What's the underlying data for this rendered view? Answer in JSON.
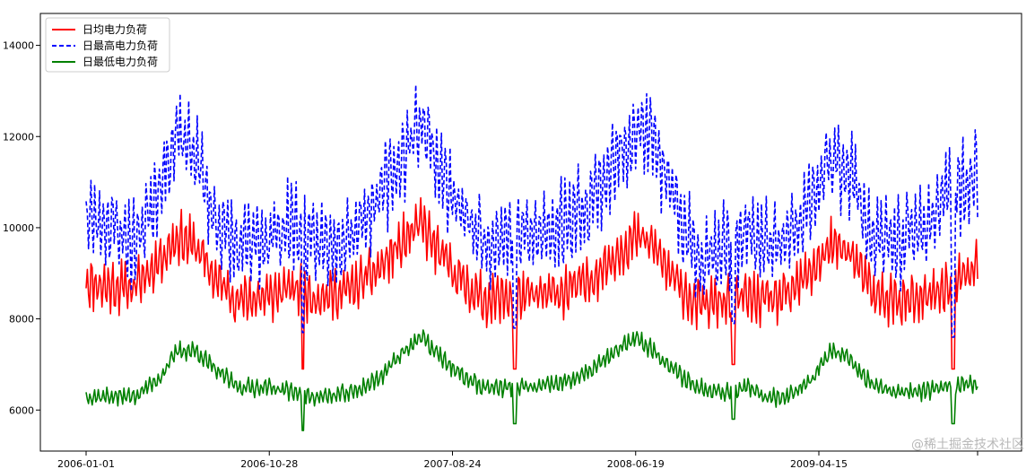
{
  "chart_data": {
    "type": "line",
    "title": "",
    "xlabel": "",
    "ylabel": "",
    "x_range_days": [
      0,
      1460
    ],
    "ylim": [
      5100,
      14700
    ],
    "x_ticks": [
      {
        "label": "2006-01-01",
        "day": 0
      },
      {
        "label": "2006-10-28",
        "day": 300
      },
      {
        "label": "2007-08-24",
        "day": 600
      },
      {
        "label": "2008-06-19",
        "day": 900
      },
      {
        "label": "2009-04-15",
        "day": 1200
      }
    ],
    "y_ticks": [
      6000,
      8000,
      10000,
      12000,
      14000
    ],
    "legend_position": "top-left",
    "series": [
      {
        "name": "日均电力负荷",
        "color": "#ff0000",
        "style": "solid",
        "base": [
          [
            0,
            8800
          ],
          [
            40,
            8700
          ],
          [
            80,
            8700
          ],
          [
            120,
            9300
          ],
          [
            150,
            9800
          ],
          [
            180,
            9600
          ],
          [
            210,
            8900
          ],
          [
            250,
            8400
          ],
          [
            300,
            8500
          ],
          [
            340,
            8700
          ],
          [
            370,
            8500
          ],
          [
            400,
            8500
          ],
          [
            440,
            8700
          ],
          [
            480,
            9100
          ],
          [
            520,
            9700
          ],
          [
            550,
            10100
          ],
          [
            570,
            9600
          ],
          [
            610,
            8900
          ],
          [
            650,
            8400
          ],
          [
            700,
            8500
          ],
          [
            740,
            8500
          ],
          [
            780,
            8600
          ],
          [
            820,
            8800
          ],
          [
            860,
            9300
          ],
          [
            900,
            9800
          ],
          [
            930,
            9600
          ],
          [
            960,
            8900
          ],
          [
            1000,
            8300
          ],
          [
            1050,
            8400
          ],
          [
            1080,
            8500
          ],
          [
            1110,
            8400
          ],
          [
            1150,
            8500
          ],
          [
            1190,
            9100
          ],
          [
            1220,
            9600
          ],
          [
            1250,
            9500
          ],
          [
            1290,
            8500
          ],
          [
            1330,
            8400
          ],
          [
            1370,
            8400
          ],
          [
            1410,
            8700
          ],
          [
            1445,
            9000
          ],
          [
            1460,
            9200
          ]
        ],
        "amp": 550,
        "seed": 11
      },
      {
        "name": "日最高电力负荷",
        "color": "#0000ff",
        "style": "dashed",
        "base": [
          [
            0,
            10200
          ],
          [
            40,
            10100
          ],
          [
            80,
            9600
          ],
          [
            120,
            11000
          ],
          [
            150,
            12000
          ],
          [
            180,
            11600
          ],
          [
            210,
            10200
          ],
          [
            250,
            9500
          ],
          [
            300,
            9800
          ],
          [
            340,
            10100
          ],
          [
            370,
            9600
          ],
          [
            400,
            9700
          ],
          [
            440,
            10000
          ],
          [
            480,
            10700
          ],
          [
            520,
            11600
          ],
          [
            550,
            12400
          ],
          [
            570,
            11600
          ],
          [
            610,
            10400
          ],
          [
            650,
            9700
          ],
          [
            700,
            9900
          ],
          [
            740,
            9800
          ],
          [
            780,
            10100
          ],
          [
            820,
            10500
          ],
          [
            860,
            11300
          ],
          [
            900,
            12200
          ],
          [
            930,
            11900
          ],
          [
            960,
            10600
          ],
          [
            1000,
            9400
          ],
          [
            1050,
            9600
          ],
          [
            1080,
            9900
          ],
          [
            1110,
            9600
          ],
          [
            1150,
            9700
          ],
          [
            1190,
            10600
          ],
          [
            1220,
            11500
          ],
          [
            1250,
            11300
          ],
          [
            1290,
            9700
          ],
          [
            1330,
            9700
          ],
          [
            1370,
            10000
          ],
          [
            1410,
            10700
          ],
          [
            1445,
            11000
          ],
          [
            1460,
            11200
          ]
        ],
        "amp": 950,
        "seed": 23
      },
      {
        "name": "日最低电力负荷",
        "color": "#008000",
        "style": "solid",
        "base": [
          [
            0,
            6300
          ],
          [
            40,
            6300
          ],
          [
            80,
            6300
          ],
          [
            120,
            6700
          ],
          [
            150,
            7300
          ],
          [
            180,
            7300
          ],
          [
            210,
            6900
          ],
          [
            250,
            6500
          ],
          [
            300,
            6500
          ],
          [
            340,
            6400
          ],
          [
            370,
            6300
          ],
          [
            400,
            6300
          ],
          [
            440,
            6400
          ],
          [
            480,
            6700
          ],
          [
            520,
            7300
          ],
          [
            550,
            7600
          ],
          [
            570,
            7300
          ],
          [
            610,
            6800
          ],
          [
            650,
            6500
          ],
          [
            700,
            6500
          ],
          [
            740,
            6500
          ],
          [
            780,
            6600
          ],
          [
            820,
            6800
          ],
          [
            860,
            7200
          ],
          [
            900,
            7600
          ],
          [
            930,
            7300
          ],
          [
            960,
            6900
          ],
          [
            1000,
            6500
          ],
          [
            1050,
            6400
          ],
          [
            1080,
            6500
          ],
          [
            1110,
            6300
          ],
          [
            1150,
            6300
          ],
          [
            1190,
            6700
          ],
          [
            1220,
            7300
          ],
          [
            1250,
            7100
          ],
          [
            1290,
            6500
          ],
          [
            1330,
            6400
          ],
          [
            1370,
            6400
          ],
          [
            1410,
            6500
          ],
          [
            1445,
            6600
          ],
          [
            1460,
            6600
          ]
        ],
        "amp": 200,
        "seed": 37
      }
    ],
    "spikes": [
      {
        "day": 355,
        "low": 5550,
        "mid": 6900,
        "high": 7700
      },
      {
        "day": 702,
        "low": 5700,
        "mid": 6900,
        "high": 7800
      },
      {
        "day": 1060,
        "low": 5800,
        "mid": 7000,
        "high": 7900
      },
      {
        "day": 1420,
        "low": 5700,
        "mid": 6900,
        "high": 7600
      }
    ]
  },
  "legend": {
    "items": [
      {
        "label": "日均电力负荷"
      },
      {
        "label": "日最高电力负荷"
      },
      {
        "label": "日最低电力负荷"
      }
    ]
  },
  "watermark": {
    "text": "@稀土掘金技术社区"
  }
}
